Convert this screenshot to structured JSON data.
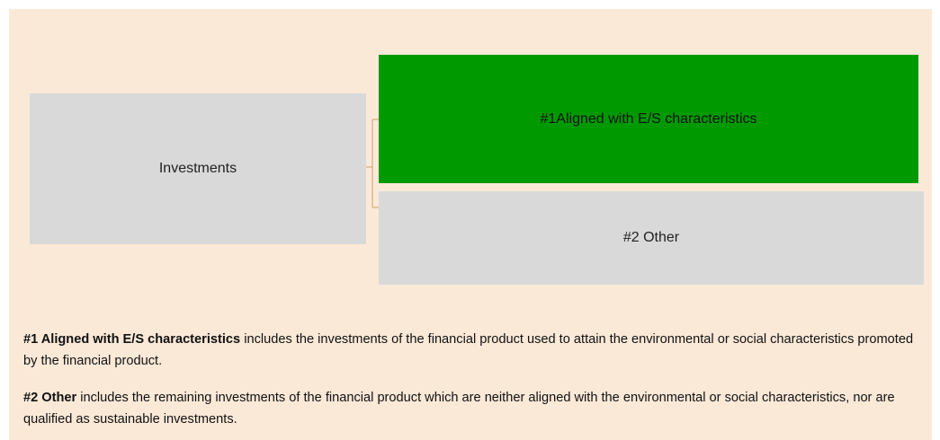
{
  "nodes": [
    {
      "label": "Investments"
    },
    {
      "label": "#1Aligned with E/S characteristics"
    },
    {
      "label": "#2 Other"
    }
  ],
  "notes": [
    {
      "term": "#1 Aligned with E/S characteristics",
      "text": "includes the investments of the financial product used to attain the environmental or social characteristics promoted by the financial product."
    },
    {
      "term": "#2 Other",
      "text": "includes the remaining investments of the financial product which are neither aligned with the environmental or social characteristics, nor are qualified as sustainable investments."
    }
  ]
}
